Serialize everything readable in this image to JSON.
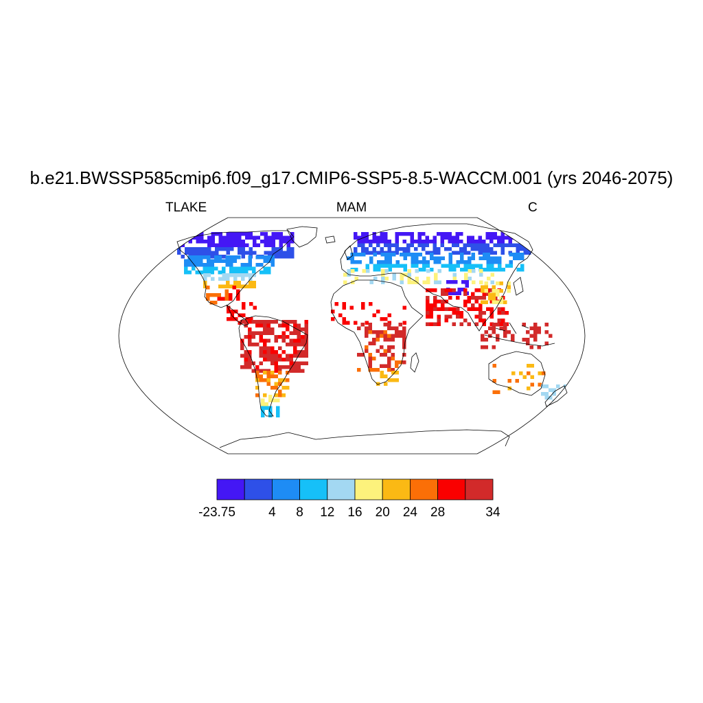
{
  "header": {
    "title": "b.e21.BWSSP585cmip6.f09_g17.CMIP6-SSP5-8.5-WACCM.001 (yrs 2046-2075)",
    "left_label": "TLAKE",
    "center_label": "MAM",
    "right_label": "C"
  },
  "map": {
    "projection": "Robinson",
    "variable": "TLAKE",
    "season": "MAM",
    "units": "C"
  },
  "colorbar": {
    "colors": [
      "#4417f5",
      "#2e50e8",
      "#1e8cf5",
      "#16c0f8",
      "#a3d8f2",
      "#fdf27c",
      "#fbb914",
      "#fb6f07",
      "#fa0000",
      "#d22a2a"
    ],
    "tick_labels": [
      "-23.75",
      "4",
      "8",
      "12",
      "16",
      "20",
      "24",
      "28",
      "34"
    ]
  }
}
